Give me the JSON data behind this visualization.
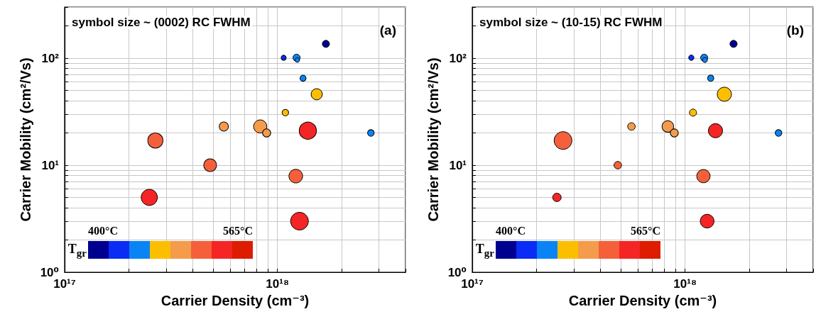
{
  "chart_data": [
    {
      "type": "bubble",
      "title": "symbol size ~ (0002) RC FWHM",
      "annotations": [
        "(a)",
        "400°C",
        "565°C",
        "T$_{gr}$"
      ],
      "xlabel": "Carrier Density (cm⁻³)",
      "ylabel": "Carrier Mobility (cm²/Vs)",
      "log": "xy",
      "grid": true,
      "marker": "circle",
      "xlim": [
        1e+17,
        4e+18
      ],
      "xticks": [
        {
          "value": 1e+17,
          "label": "10¹⁷"
        },
        {
          "value": 2e+17,
          "label": null
        },
        {
          "value": 3e+17,
          "label": null
        },
        {
          "value": 4e+17,
          "label": null
        },
        {
          "value": 5e+17,
          "label": null
        },
        {
          "value": 6e+17,
          "label": null
        },
        {
          "value": 7e+17,
          "label": null
        },
        {
          "value": 8e+17,
          "label": null
        },
        {
          "value": 9e+17,
          "label": null
        },
        {
          "value": 1e+18,
          "label": "10¹⁸"
        },
        {
          "value": 2e+18,
          "label": null
        },
        {
          "value": 3e+18,
          "label": null
        },
        {
          "value": 4e+18,
          "label": null
        }
      ],
      "ylim": [
        1,
        300
      ],
      "yticks": [
        {
          "value": 1,
          "label": "10⁰"
        },
        {
          "value": 2,
          "label": null
        },
        {
          "value": 3,
          "label": null
        },
        {
          "value": 4,
          "label": null
        },
        {
          "value": 5,
          "label": null
        },
        {
          "value": 6,
          "label": null
        },
        {
          "value": 7,
          "label": null
        },
        {
          "value": 8,
          "label": null
        },
        {
          "value": 9,
          "label": null
        },
        {
          "value": 10,
          "label": "10¹"
        },
        {
          "value": 20,
          "label": null
        },
        {
          "value": 30,
          "label": null
        },
        {
          "value": 40,
          "label": null
        },
        {
          "value": 50,
          "label": null
        },
        {
          "value": 60,
          "label": null
        },
        {
          "value": 70,
          "label": null
        },
        {
          "value": 80,
          "label": null
        },
        {
          "value": 90,
          "label": null
        },
        {
          "value": 100,
          "label": "10²"
        },
        {
          "value": 200,
          "label": null
        },
        {
          "value": 300,
          "label": null
        }
      ],
      "x": [
        1.69e+18,
        1.07e+18,
        1.23e+18,
        1.24e+18,
        1.32e+18,
        1.53e+18,
        1.09e+18,
        5.6e+17,
        8.3e+17,
        8.9e+17,
        1.39e+18,
        2.75e+18,
        2.67e+17,
        4.83e+17,
        1.22e+18,
        2.5e+17,
        1.27e+18
      ],
      "values": [
        136,
        101,
        101,
        96,
        65,
        46,
        31,
        23,
        23,
        20,
        21,
        20,
        17,
        10,
        7.9,
        5,
        3
      ],
      "sizes": [
        0.16,
        0.08,
        0.16,
        0.066,
        0.118,
        0.395,
        0.138,
        0.264,
        0.552,
        0.209,
        0.944,
        0.138,
        0.735,
        0.51,
        0.595,
        0.836,
        1
      ],
      "colors": [
        "#000090",
        "#0a2cf5",
        "#0a84f5",
        "#0a84f5",
        "#0a84f5",
        "#fbbf00",
        "#fbbf00",
        "#f59b4c",
        "#f59b4c",
        "#f59b4c",
        "#f52525",
        "#0a84f5",
        "#f5603a",
        "#f5603a",
        "#f5603a",
        "#f52525",
        "#f52525"
      ]
    },
    {
      "type": "bubble",
      "title": "symbol size ~ (10-15) RC FWHM",
      "annotations": [
        "(b)",
        "400°C",
        "565°C",
        "T$_{gr}$"
      ],
      "xlabel": "Carrier Density (cm⁻³)",
      "ylabel": "Carrier Mobility (cm²/Vs)",
      "log": "xy",
      "grid": true,
      "marker": "circle",
      "xlim": [
        1e+17,
        4e+18
      ],
      "xticks": [
        {
          "value": 1e+17,
          "label": "10¹⁷"
        },
        {
          "value": 2e+17,
          "label": null
        },
        {
          "value": 3e+17,
          "label": null
        },
        {
          "value": 4e+17,
          "label": null
        },
        {
          "value": 5e+17,
          "label": null
        },
        {
          "value": 6e+17,
          "label": null
        },
        {
          "value": 7e+17,
          "label": null
        },
        {
          "value": 8e+17,
          "label": null
        },
        {
          "value": 9e+17,
          "label": null
        },
        {
          "value": 1e+18,
          "label": "10¹⁸"
        },
        {
          "value": 2e+18,
          "label": null
        },
        {
          "value": 3e+18,
          "label": null
        },
        {
          "value": 4e+18,
          "label": null
        }
      ],
      "ylim": [
        1,
        300
      ],
      "yticks": [
        {
          "value": 1,
          "label": "10⁰"
        },
        {
          "value": 2,
          "label": null
        },
        {
          "value": 3,
          "label": null
        },
        {
          "value": 4,
          "label": null
        },
        {
          "value": 5,
          "label": null
        },
        {
          "value": 6,
          "label": null
        },
        {
          "value": 7,
          "label": null
        },
        {
          "value": 8,
          "label": null
        },
        {
          "value": 9,
          "label": null
        },
        {
          "value": 10,
          "label": "10¹"
        },
        {
          "value": 20,
          "label": null
        },
        {
          "value": 30,
          "label": null
        },
        {
          "value": 40,
          "label": null
        },
        {
          "value": 50,
          "label": null
        },
        {
          "value": 60,
          "label": null
        },
        {
          "value": 70,
          "label": null
        },
        {
          "value": 80,
          "label": null
        },
        {
          "value": 90,
          "label": null
        },
        {
          "value": 100,
          "label": "10²"
        },
        {
          "value": 200,
          "label": null
        },
        {
          "value": 300,
          "label": null
        }
      ],
      "x": [
        1.69e+18,
        1.07e+18,
        1.23e+18,
        1.24e+18,
        1.32e+18,
        1.53e+18,
        1.09e+18,
        5.6e+17,
        8.3e+17,
        8.9e+17,
        1.39e+18,
        2.75e+18,
        2.67e+17,
        4.83e+17,
        1.22e+18,
        2.5e+17,
        1.27e+18
      ],
      "values": [
        136,
        101,
        101,
        96,
        65,
        46,
        31,
        23,
        23,
        20,
        21,
        20,
        17,
        10,
        7.9,
        5,
        3
      ],
      "sizes": [
        0.16,
        0.09,
        0.16,
        0.076,
        0.123,
        0.64,
        0.16,
        0.181,
        0.423,
        0.203,
        0.64,
        0.141,
        1,
        0.181,
        0.563,
        0.226,
        0.6
      ],
      "colors": [
        "#000090",
        "#0a2cf5",
        "#0a84f5",
        "#0a84f5",
        "#0a84f5",
        "#fbbf00",
        "#fbbf00",
        "#f59b4c",
        "#f59b4c",
        "#f59b4c",
        "#f52525",
        "#0a84f5",
        "#f5603a",
        "#f5603a",
        "#f5603a",
        "#f52525",
        "#f52525"
      ]
    }
  ]
}
